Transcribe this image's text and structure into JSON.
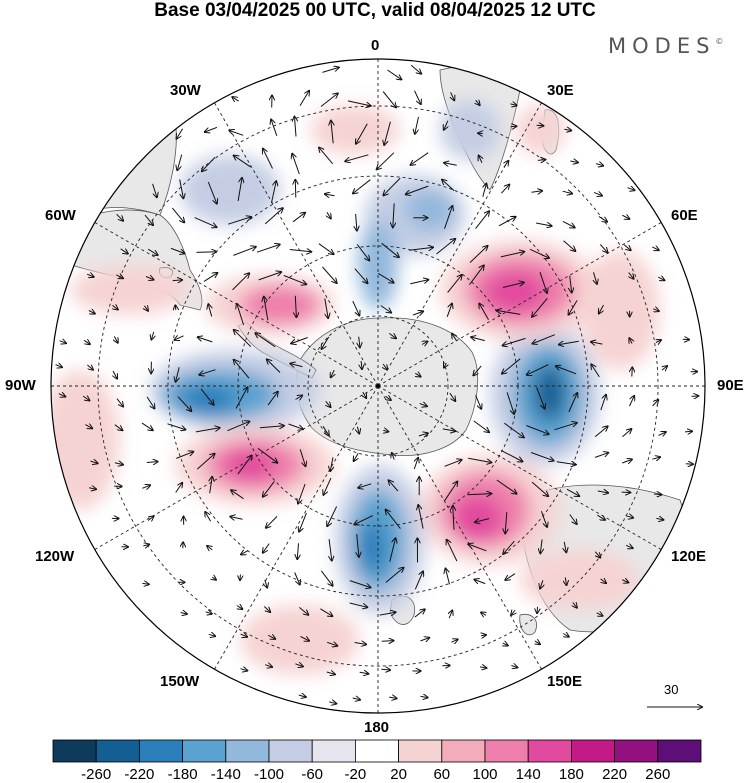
{
  "title": "Base 03/04/2025 00 UTC, valid 08/04/2025 12 UTC",
  "brand": "MODES",
  "brand_mark": "©",
  "longitude_labels": {
    "lon_0": "0",
    "lon_30e": "30E",
    "lon_60e": "60E",
    "lon_90e": "90E",
    "lon_120e": "120E",
    "lon_150e": "150E",
    "lon_180": "180",
    "lon_150w": "150W",
    "lon_120w": "120W",
    "lon_90w": "90W",
    "lon_60w": "60W",
    "lon_30w": "30W"
  },
  "reference_vector_label": "30",
  "colorbar": {
    "colors": [
      "#0e3a5b",
      "#135e93",
      "#2b7fbb",
      "#5aa2cf",
      "#92b8dc",
      "#c4cde4",
      "#e6e5f0",
      "#ffffff",
      "#f6d3d3",
      "#f2acba",
      "#ee7fac",
      "#e14a9e",
      "#c41a88",
      "#93117e",
      "#5e0f77"
    ],
    "labels": [
      "-260",
      "-220",
      "-180",
      "-140",
      "-100",
      "-60",
      "-20",
      "20",
      "60",
      "100",
      "140",
      "180",
      "220",
      "260"
    ]
  },
  "colors": {
    "land": "#e8e8e8",
    "coast": "#555555",
    "grid": "#222222"
  }
}
